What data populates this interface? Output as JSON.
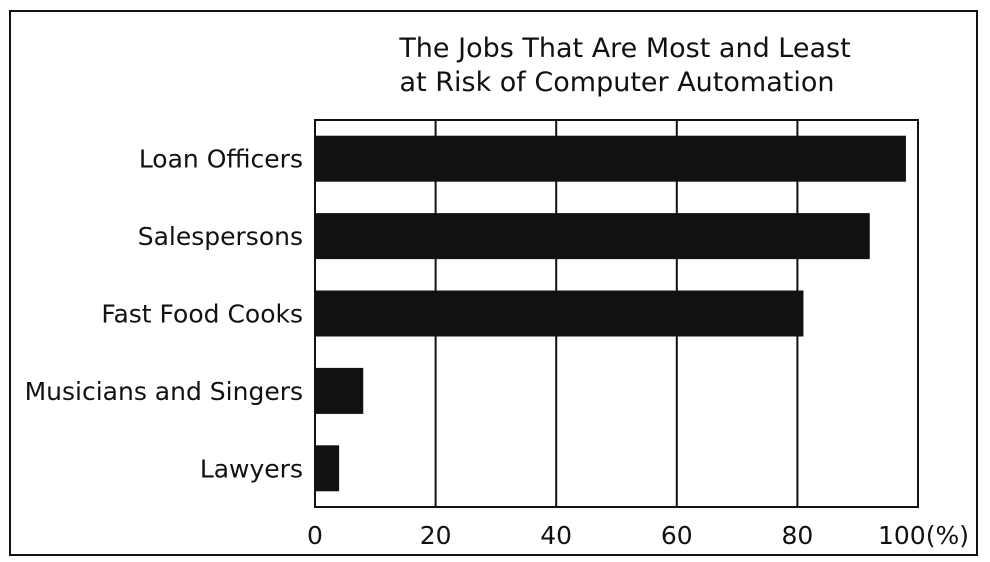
{
  "chart_data": {
    "type": "bar",
    "orientation": "horizontal",
    "title_lines": [
      "The Jobs That Are Most and Least",
      "at Risk of Computer Automation"
    ],
    "categories": [
      "Loan Officers",
      "Salespersons",
      "Fast Food Cooks",
      "Musicians and Singers",
      "Lawyers"
    ],
    "values": [
      98,
      92,
      81,
      8,
      4
    ],
    "xlim": [
      0,
      100
    ],
    "ticks": [
      0,
      20,
      40,
      60,
      80,
      100
    ],
    "tick_labels": [
      "0",
      "20",
      "40",
      "60",
      "80",
      "100(%)"
    ],
    "grid": "vertical",
    "bar_color": "#111111"
  }
}
